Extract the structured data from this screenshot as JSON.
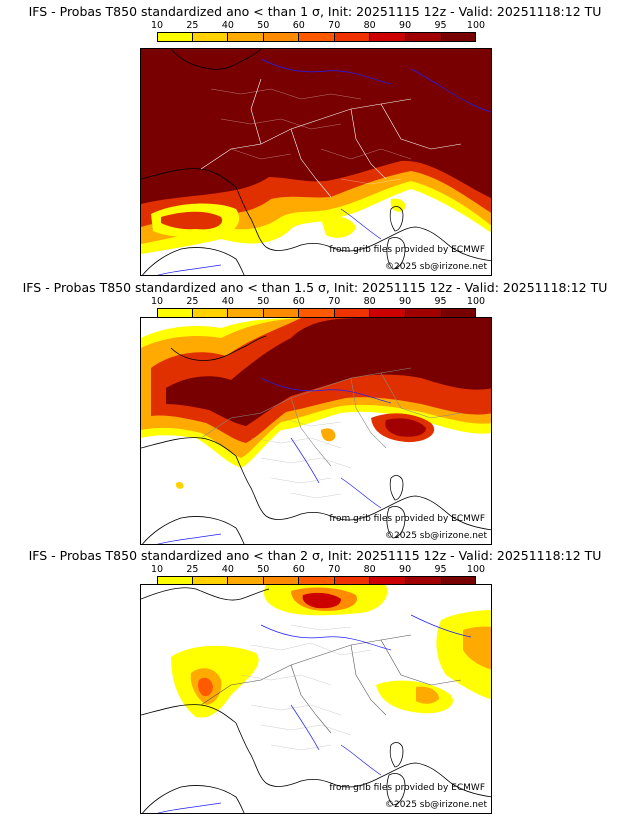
{
  "colorbar": {
    "ticks": [
      "10",
      "25",
      "40",
      "50",
      "60",
      "70",
      "80",
      "90",
      "95",
      "100"
    ],
    "colors": [
      "#ffff00",
      "#ffd200",
      "#ffaa00",
      "#ff8c00",
      "#ff5a00",
      "#f03200",
      "#cd0000",
      "#a00000",
      "#780000"
    ]
  },
  "panels": [
    {
      "title": "IFS - Probas T850  standardized ano < than 1 σ, Init: 20251115 12z - Valid: 20251118:12 TU",
      "credit_grib": "from grib files provided by ECMWF",
      "credit_copyright": "©2025 sb@irizone.net"
    },
    {
      "title": "IFS - Probas T850  standardized ano < than 1.5 σ, Init: 20251115 12z - Valid: 20251118:12 TU",
      "credit_grib": "from grib files provided by ECMWF",
      "credit_copyright": "©2025 sb@irizone.net"
    },
    {
      "title": "IFS - Probas T850  standardized ano < than 2 σ, Init: 20251115 12z - Valid: 20251118:12 TU",
      "credit_grib": "from grib files provided by ECMWF",
      "credit_copyright": "©2025 sb@irizone.net"
    }
  ]
}
